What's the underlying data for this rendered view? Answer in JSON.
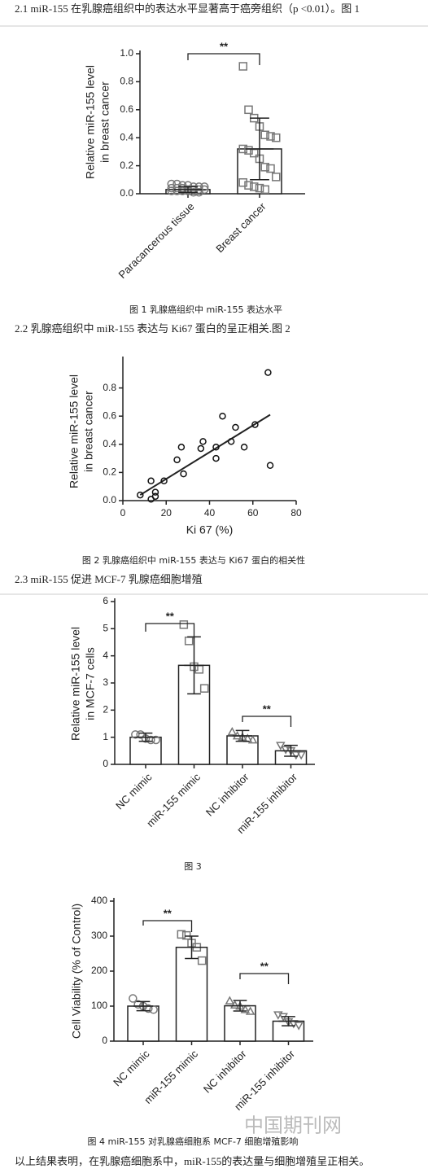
{
  "paragraphs": [
    "2.1 miR-155 在乳腺癌组织中的表达水平显著高于癌旁组织（p <0.01）。图 1",
    "2.2 乳腺癌组织中 miR-155 表达与 Ki67 蛋白的呈正相关.图 2",
    "2.3 miR-155 促进 MCF-7 乳腺癌细胞增殖",
    "以上结果表明，在乳腺癌细胞系中，miR-155的表达量与细胞增殖呈正相关。"
  ],
  "captions": [
    "图 1  乳腺癌组织中 miR-155 表达水平",
    "图 2  乳腺癌组织中 miR-155 表达与 Ki67 蛋白的相关性",
    "图 3",
    "图 4 miR-155 对乳腺癌细胞系 MCF-7 细胞增殖影响"
  ],
  "watermark": "中国期刊网",
  "chart_data": [
    {
      "type": "bar",
      "ylabel": [
        "Relative miR-155 level",
        "in breast cancer"
      ],
      "categories": [
        "Paracancerous tissue",
        "Breast cancer"
      ],
      "values": [
        0.03,
        0.32
      ],
      "errors": [
        0.02,
        0.22
      ],
      "points": [
        [
          0.07,
          0.07,
          0.06,
          0.06,
          0.05,
          0.05,
          0.05,
          0.04,
          0.04,
          0.04,
          0.03,
          0.03,
          0.03,
          0.03,
          0.02,
          0.02,
          0.02,
          0.02,
          0.01,
          0.01
        ],
        [
          0.91,
          0.6,
          0.54,
          0.48,
          0.42,
          0.41,
          0.4,
          0.32,
          0.31,
          0.29,
          0.25,
          0.19,
          0.18,
          0.12,
          0.08,
          0.06,
          0.05,
          0.04,
          0.03
        ]
      ],
      "markers": [
        "circle",
        "square"
      ],
      "color": "#777777",
      "annotations": [
        "**"
      ],
      "ylim": [
        0,
        1.0
      ],
      "yticks": [
        {
          "value": 0,
          "label": "0.0"
        },
        0.2,
        0.4,
        0.6,
        0.8,
        {
          "value": 1.0,
          "label": "1.0"
        }
      ]
    },
    {
      "type": "scatter",
      "ylabel": [
        "Relative miR-155 level",
        "in breast cancer"
      ],
      "xlabel": "Ki 67 (%)",
      "x": [
        8,
        13,
        13,
        15,
        15,
        19,
        25,
        27,
        28,
        36,
        37,
        43,
        43,
        46,
        50,
        52,
        56,
        61,
        67,
        68
      ],
      "y": [
        0.04,
        0.01,
        0.14,
        0.06,
        0.03,
        0.14,
        0.29,
        0.38,
        0.19,
        0.37,
        0.42,
        0.38,
        0.3,
        0.6,
        0.42,
        0.52,
        0.38,
        0.54,
        0.91,
        0.25
      ],
      "trend": {
        "x": [
          8,
          68
        ],
        "y": [
          0.04,
          0.61
        ]
      },
      "xlim": [
        0,
        80
      ],
      "xticks": [
        0,
        20,
        40,
        60,
        80
      ],
      "ylim": [
        0,
        1.0
      ],
      "yticks": [
        {
          "value": 0,
          "label": "0.0"
        },
        0.2,
        0.4,
        0.6,
        0.8
      ]
    },
    {
      "type": "bar",
      "ylabel": [
        "Relative miR-155 level",
        "in MCF-7 cells"
      ],
      "categories": [
        "NC mimic",
        "miR-155 mimic",
        "NC inhibitor",
        "miR-155 inhibitor"
      ],
      "values": [
        1.0,
        3.65,
        1.05,
        0.5
      ],
      "errors": [
        0.15,
        1.05,
        0.2,
        0.2
      ],
      "points": [
        [
          1.1,
          1.1,
          0.95,
          0.9,
          0.9
        ],
        [
          5.15,
          4.55,
          3.6,
          3.5,
          2.8
        ],
        [
          1.2,
          1.05,
          1.0,
          0.95,
          0.9
        ],
        [
          0.7,
          0.55,
          0.5,
          0.35,
          0.35
        ]
      ],
      "markers": [
        "circle",
        "square",
        "triangle",
        "triangle-down"
      ],
      "color": "#777777",
      "annotations": [
        "**",
        "**"
      ],
      "ylim": [
        0,
        6
      ],
      "yticks": [
        0,
        1,
        2,
        3,
        4,
        5,
        6
      ]
    },
    {
      "type": "bar",
      "ylabel": [
        "Cell Viability (% of Control)"
      ],
      "categories": [
        "NC mimic",
        "miR-155 mimic",
        "NC inhibitor",
        "miR-155 inhibitor"
      ],
      "values": [
        100,
        268,
        101,
        57
      ],
      "errors": [
        13,
        32,
        15,
        13
      ],
      "points": [
        [
          122,
          105,
          100,
          93,
          90
        ],
        [
          305,
          302,
          280,
          268,
          230
        ],
        [
          115,
          103,
          100,
          90,
          85
        ],
        [
          75,
          70,
          55,
          50,
          45
        ]
      ],
      "markers": [
        "circle",
        "square",
        "triangle",
        "triangle-down"
      ],
      "color": "#777777",
      "annotations": [
        "**",
        "**"
      ],
      "ylim": [
        0,
        400
      ],
      "yticks": [
        0,
        100,
        200,
        300,
        400
      ]
    }
  ]
}
